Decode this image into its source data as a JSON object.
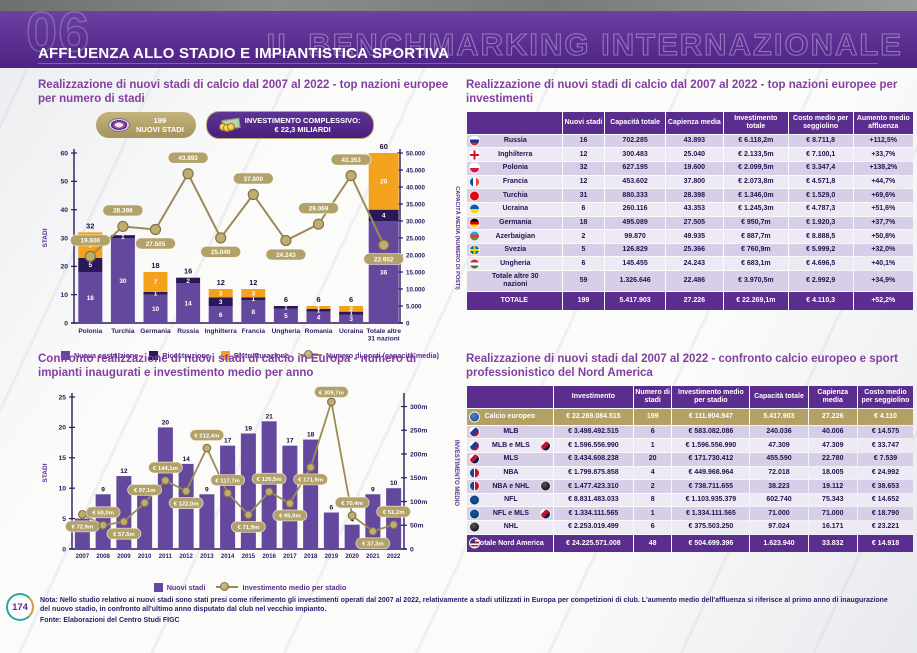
{
  "header": {
    "chapter_number": "06",
    "title": "AFFLUENZA ALLO STADIO E IMPIANTISTICA SPORTIVA",
    "watermark": "IL BENCHMARKING INTERNAZIONALE"
  },
  "colors": {
    "accent_purple": "#5b2d8e",
    "bar_purple": "#64489e",
    "bar_dark": "#2a1758",
    "bar_orange": "#f4a11d",
    "line_tan": "#9c8b58",
    "pill_tan": "#b2a169",
    "gold_row": "#b2a065",
    "title_violet": "#83409f"
  },
  "sections": {
    "stadi_chart": {
      "title": "Realizzazione di nuovi stadi di calcio dal 2007 al 2022 - top nazioni europee per numero di stadi",
      "badge_count_value": "199",
      "badge_count_label": "NUOVI STADI",
      "badge_invest_label": "INVESTIMENTO COMPLESSIVO:",
      "badge_invest_value": "€ 22,3 MILIARDI"
    },
    "investments_table": {
      "title": "Realizzazione di nuovi stadi di calcio dal 2007 al 2022 - top nazioni europee per investimenti"
    },
    "years_chart": {
      "title": "Confronto realizzazione di nuovi stadi di calcio in Europa - numero di impianti inaugurati e investimento medio per anno"
    },
    "comparison_table": {
      "title": "Realizzazione di nuovi stadi dal 2007 al 2022 - confronto calcio europeo e sport professionistico del Nord America"
    }
  },
  "chart_data": [
    {
      "type": "bar",
      "subtype": "stacked-bars-with-line",
      "title": "Realizzazione di nuovi stadi di calcio dal 2007 al 2022 - top nazioni europee per numero di stadi",
      "categories": [
        "Polonia",
        "Turchia",
        "Germania",
        "Russia",
        "Inghilterra",
        "Francia",
        "Ungheria",
        "Romania",
        "Ucraina",
        "Totale altre 31 nazioni"
      ],
      "series": [
        {
          "name": "Nuova costruzione",
          "color": "#64489e",
          "values": [
            18,
            30,
            10,
            14,
            6,
            8,
            5,
            4,
            3,
            36
          ]
        },
        {
          "name": "Ricostruzione",
          "color": "#2a1758",
          "values": [
            5,
            1,
            1,
            2,
            3,
            1,
            1,
            1,
            1,
            4
          ]
        },
        {
          "name": "Ristrutturazione",
          "color": "#f4a11d",
          "values": [
            9,
            0,
            7,
            0,
            3,
            3,
            0,
            1,
            2,
            20
          ]
        }
      ],
      "totals": [
        32,
        31,
        18,
        16,
        12,
        12,
        6,
        6,
        6,
        60
      ],
      "line": {
        "name": "Numero di posti (capacità media)",
        "color": "#9c8b58",
        "values": [
          19600,
          28398,
          27505,
          43893,
          25040,
          37800,
          24243,
          29069,
          43353,
          22952
        ],
        "labels": [
          "19.600",
          "28.398",
          "27.505",
          "43.893",
          "25.040",
          "37.800",
          "24.243",
          "29.069",
          "43.353",
          "22.952"
        ]
      },
      "ylabel_left": "STADI",
      "ylim_left": [
        0,
        60
      ],
      "yticks_left": [
        "0",
        "10",
        "20",
        "30",
        "40",
        "50",
        "60"
      ],
      "ylabel_right": "CAPACITÀ MEDIA (NUMERO DI POSTI)",
      "ylim_right": [
        0,
        50000
      ],
      "yticks_right": [
        "0",
        "5.000",
        "10.000",
        "15.000",
        "20.000",
        "25.000",
        "30.000",
        "35.000",
        "40.000",
        "45.000",
        "50.000"
      ],
      "legend_position": "bottom"
    },
    {
      "type": "bar",
      "subtype": "bars-with-line",
      "title": "Confronto realizzazione di nuovi stadi di calcio in Europa - numero di impianti inaugurati e investimento medio per anno",
      "categories": [
        "2007",
        "2008",
        "2009",
        "2010",
        "2011",
        "2012",
        "2013",
        "2014",
        "2015",
        "2016",
        "2017",
        "2018",
        "2019",
        "2020",
        "2021",
        "2022"
      ],
      "bars": {
        "name": "Nuovi stadi",
        "color": "#64489e",
        "values": [
          5,
          9,
          12,
          9,
          20,
          14,
          9,
          17,
          19,
          21,
          17,
          18,
          6,
          4,
          9,
          10
        ]
      },
      "line": {
        "name": "Investimento medio per stadio",
        "color": "#9c8b58",
        "values": [
          72.9,
          50.0,
          57.5,
          97.1,
          144.1,
          122.0,
          212.4,
          117.7,
          71.9,
          120.5,
          95.9,
          171.9,
          309.7,
          70.4,
          37.3,
          51.2
        ],
        "labels": [
          "€ 72,9m",
          "€ 50,0m",
          "€ 57,5m",
          "€ 97,1m",
          "€ 144,1m",
          "€ 122,0m",
          "€ 212,4m",
          "€ 117,7m",
          "€ 71,9m",
          "€ 120,5m",
          "€ 95,9m",
          "€ 171,9m",
          "€ 309,7m",
          "€ 70,4m",
          "€ 37,3m",
          "€ 51,2m"
        ]
      },
      "ylabel_left": "STADI",
      "ylim_left": [
        0,
        25
      ],
      "yticks_left": [
        "0",
        "5",
        "10",
        "15",
        "20",
        "25"
      ],
      "ylabel_right": "INVESTIMENTO MEDIO",
      "ylim_right": [
        0,
        320
      ],
      "yticks_right_values": [
        0,
        50,
        100,
        150,
        200,
        250,
        300
      ],
      "yticks_right": [
        "0",
        "50m",
        "100m",
        "150m",
        "200m",
        "250m",
        "300m"
      ],
      "legend_position": "bottom"
    }
  ],
  "tables": {
    "investments": {
      "columns": [
        "Nuovi stadi",
        "Capacità totale",
        "Capienza media",
        "Investimento totale",
        "Costo medio per seggiolino",
        "Aumento medio affluenza"
      ],
      "rows": [
        {
          "flag": "russia",
          "label": "Russia",
          "values": [
            "16",
            "702.285",
            "43.893",
            "€ 6.118,2m",
            "€ 8.711,8",
            "+112,5%"
          ]
        },
        {
          "flag": "inghilterra",
          "label": "Inghilterra",
          "values": [
            "12",
            "300.483",
            "25.040",
            "€ 2.133,5m",
            "€ 7.100,1",
            "+33,7%"
          ]
        },
        {
          "flag": "polonia",
          "label": "Polonia",
          "values": [
            "32",
            "627.195",
            "19.600",
            "€ 2.099,5m",
            "€ 3.347,4",
            "+138,2%"
          ]
        },
        {
          "flag": "francia",
          "label": "Francia",
          "values": [
            "12",
            "453.602",
            "37.800",
            "€ 2.073,8m",
            "€ 4.571,8",
            "+44,7%"
          ]
        },
        {
          "flag": "turchia",
          "label": "Turchia",
          "values": [
            "31",
            "880.333",
            "28.398",
            "€ 1.346,0m",
            "€ 1.529,0",
            "+69,6%"
          ]
        },
        {
          "flag": "ucraina",
          "label": "Ucraina",
          "values": [
            "6",
            "260.116",
            "43.353",
            "€ 1.245,3m",
            "€ 4.787,3",
            "+51,6%"
          ]
        },
        {
          "flag": "germania",
          "label": "Germania",
          "values": [
            "18",
            "495.089",
            "27.505",
            "€ 950,7m",
            "€ 1.920,3",
            "+37,7%"
          ]
        },
        {
          "flag": "azerbaigian",
          "label": "Azerbaigian",
          "values": [
            "2",
            "99.870",
            "49.935",
            "€ 887,7m",
            "€ 8.888,5",
            "+50,8%"
          ]
        },
        {
          "flag": "svezia",
          "label": "Svezia",
          "values": [
            "5",
            "126.829",
            "25.366",
            "€ 760,9m",
            "€ 5.999,2",
            "+32,0%"
          ]
        },
        {
          "flag": "ungheria",
          "label": "Ungheria",
          "values": [
            "6",
            "145.455",
            "24.243",
            "€ 683,1m",
            "€ 4.696,5",
            "+40,1%"
          ]
        },
        {
          "flag": "",
          "label": "Totale altre 30 nazioni",
          "values": [
            "59",
            "1.326.646",
            "22.486",
            "€ 3.970,5m",
            "€ 2.992,9",
            "+34,9%"
          ]
        }
      ],
      "total_row": {
        "label": "TOTALE",
        "values": [
          "199",
          "5.417.903",
          "27.226",
          "€ 22.269,1m",
          "€ 4.110,3",
          "+52,2%"
        ]
      }
    },
    "comparison": {
      "columns": [
        "Investimento",
        "Numero di stadi",
        "Investimento medio per stadio",
        "Capacità totale",
        "Capienza media",
        "Costo medio per seggiolino"
      ],
      "rows": [
        {
          "icon": "uefa",
          "label": "Calcio europeo",
          "style": "gold",
          "values": [
            "€ 22.269.084.515",
            "199",
            "€ 111.904.947",
            "5.417.903",
            "27.226",
            "€ 4.110"
          ]
        },
        {
          "icon": "mlb",
          "label": "MLB",
          "values": [
            "€ 3.498.492.515",
            "6",
            "€ 583.082.086",
            "240.036",
            "40.006",
            "€ 14.575"
          ]
        },
        {
          "icon": "mlb",
          "icon2": "mls",
          "label": "MLB e MLS",
          "values": [
            "€ 1.596.556.990",
            "1",
            "€ 1.596.556.990",
            "47.309",
            "47.309",
            "€ 33.747"
          ]
        },
        {
          "icon": "mls",
          "label": "MLS",
          "values": [
            "€ 3.434.608.238",
            "20",
            "€ 171.730.412",
            "455.590",
            "22.780",
            "€ 7.539"
          ]
        },
        {
          "icon": "nba",
          "label": "NBA",
          "values": [
            "€ 1.799.875.858",
            "4",
            "€ 449.968.964",
            "72.018",
            "18.005",
            "€ 24.992"
          ]
        },
        {
          "icon": "nba",
          "icon2": "nhl",
          "label": "NBA e NHL",
          "values": [
            "€ 1.477.423.310",
            "2",
            "€ 738.711.655",
            "38.223",
            "19.112",
            "€ 38.653"
          ]
        },
        {
          "icon": "nfl",
          "label": "NFL",
          "values": [
            "€ 8.831.483.033",
            "8",
            "€ 1.103.935.379",
            "602.740",
            "75.343",
            "€ 14.652"
          ]
        },
        {
          "icon": "nfl",
          "icon2": "mls",
          "label": "NFL e MLS",
          "values": [
            "€ 1.334.111.565",
            "1",
            "€ 1.334.111.565",
            "71.000",
            "71.000",
            "€ 18.790"
          ]
        },
        {
          "icon": "nhl",
          "label": "NHL",
          "values": [
            "€ 2.253.019.499",
            "6",
            "€ 375.503.250",
            "97.024",
            "16.171",
            "€ 23.221"
          ]
        },
        {
          "icon": "usa",
          "label": "Totale Nord America",
          "style": "purple",
          "values": [
            "€ 24.225.571.008",
            "48",
            "€ 504.699.396",
            "1.623.940",
            "33.832",
            "€ 14.918"
          ]
        }
      ]
    }
  },
  "footer": {
    "page_number": "174",
    "note": "Nota: Nello studio relativo ai nuovi stadi sono stati presi come riferimento gli investimenti operati dal 2007 al 2022, relativamente a stadi utilizzati in Europa per competizioni di club. L'aumento medio dell'affluenza si riferisce al primo anno di inaugurazione del nuovo stadio, in confronto all'ultimo anno disputato dal club nel vecchio impianto.",
    "source": "Fonte: Elaborazioni del Centro Studi FIGC"
  }
}
